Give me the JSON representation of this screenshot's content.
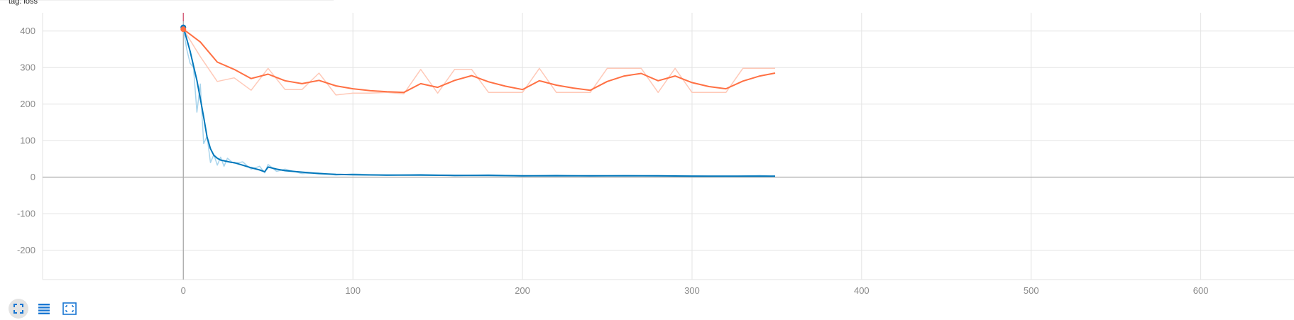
{
  "header": {
    "title": "tag: loss"
  },
  "toolbar": {
    "buttons": [
      {
        "name": "toggle-expand-button",
        "icon": "expand-icon",
        "active": true
      },
      {
        "name": "toggle-log-scale-button",
        "icon": "list-icon",
        "active": false
      },
      {
        "name": "fit-domain-button",
        "icon": "fit-domain-icon",
        "active": false
      }
    ]
  },
  "chart_data": {
    "type": "line",
    "title": "tag: loss",
    "xlabel": "",
    "ylabel": "",
    "xlim": [
      -83,
      655
    ],
    "ylim": [
      -280,
      450
    ],
    "xticks": [
      0,
      100,
      200,
      300,
      400,
      500,
      600
    ],
    "yticks": [
      -200,
      -100,
      0,
      100,
      200,
      300,
      400
    ],
    "grid": true,
    "colors": {
      "series_blue": "#0077bb",
      "series_blue_raw": "#a8d4ec",
      "series_orange": "#ff7043",
      "series_orange_raw": "#ffc9b8",
      "grid": "#e3e3e3",
      "zero_axis": "#aaaaaa",
      "cursor_line": "#d95c77"
    },
    "series": [
      {
        "color": "#0077bb",
        "raw_color": "#a8d4ec",
        "x": [
          0,
          2,
          4,
          6,
          8,
          10,
          12,
          14,
          16,
          18,
          20,
          22,
          24,
          26,
          28,
          30,
          35,
          40,
          45,
          48,
          50,
          55,
          60,
          70,
          80,
          90,
          100,
          120,
          140,
          160,
          180,
          200,
          220,
          240,
          260,
          280,
          300,
          320,
          340,
          349
        ],
        "values": [
          410,
          378,
          345,
          305,
          265,
          215,
          165,
          110,
          78,
          60,
          52,
          47,
          45,
          43,
          41,
          40,
          33,
          26,
          20,
          15,
          28,
          22,
          18,
          14,
          10,
          8,
          7,
          6,
          6,
          5,
          5,
          4,
          4,
          4,
          4,
          4,
          3,
          3,
          3,
          3
        ],
        "raw_values": [
          405,
          350,
          312,
          300,
          178,
          255,
          92,
          112,
          40,
          62,
          33,
          55,
          30,
          52,
          44,
          38,
          42,
          22,
          30,
          12,
          35,
          16,
          22,
          10,
          12,
          6,
          9,
          5,
          8,
          4,
          7,
          3,
          6,
          3,
          5,
          3,
          4,
          2,
          5,
          2
        ]
      },
      {
        "color": "#ff7043",
        "raw_color": "#ffc9b8",
        "x": [
          0,
          10,
          20,
          30,
          40,
          50,
          60,
          70,
          80,
          90,
          100,
          110,
          120,
          130,
          140,
          150,
          160,
          170,
          180,
          190,
          200,
          210,
          220,
          230,
          240,
          250,
          260,
          270,
          280,
          290,
          300,
          310,
          320,
          330,
          340,
          349
        ],
        "values": [
          405,
          370,
          315,
          295,
          270,
          282,
          264,
          256,
          265,
          250,
          242,
          237,
          234,
          232,
          256,
          246,
          265,
          278,
          261,
          249,
          240,
          264,
          252,
          244,
          238,
          262,
          277,
          284,
          264,
          277,
          259,
          248,
          242,
          263,
          277,
          285
        ],
        "raw_values": [
          405,
          330,
          262,
          272,
          238,
          298,
          240,
          240,
          285,
          225,
          230,
          230,
          232,
          228,
          295,
          230,
          295,
          295,
          232,
          232,
          232,
          298,
          232,
          232,
          232,
          298,
          298,
          298,
          232,
          298,
          232,
          232,
          232,
          298,
          298,
          298
        ]
      }
    ]
  }
}
